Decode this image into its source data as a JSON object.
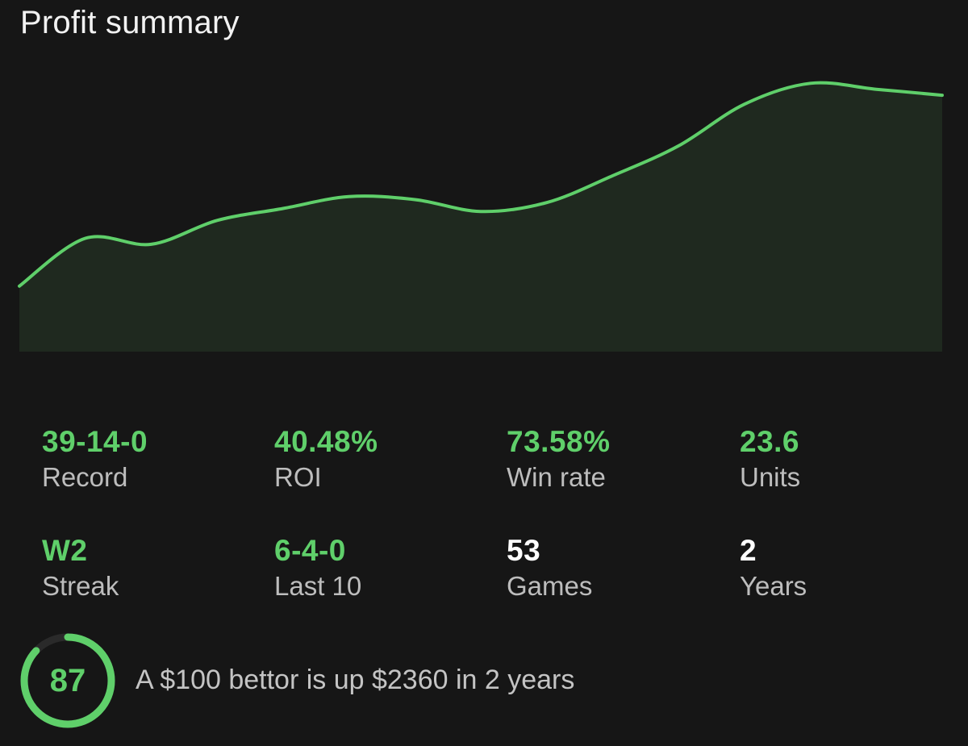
{
  "header": {
    "title": "Profit summary"
  },
  "colors": {
    "background": "#161616",
    "accent_green": "#5fcf6a",
    "area_fill": "#1f291f",
    "label_gray": "#bdbdbd",
    "ring_track": "#2a2a2a"
  },
  "chart_data": {
    "type": "area",
    "title": "",
    "xlabel": "",
    "ylabel": "",
    "grid": false,
    "legend": "none",
    "x": [
      0,
      1,
      2,
      3,
      4,
      5,
      6,
      7,
      8,
      9,
      10,
      11,
      12,
      13,
      14
    ],
    "series": [
      {
        "values": [
          0.7,
          2.3,
          2.1,
          2.9,
          3.3,
          3.7,
          3.6,
          3.2,
          3.5,
          4.4,
          5.4,
          6.8,
          7.5,
          7.3,
          7.1
        ]
      }
    ],
    "ylim": [
      -1.5,
      8.4
    ]
  },
  "stats": [
    {
      "value": "39-14-0",
      "label": "Record",
      "color": "green"
    },
    {
      "value": "40.48%",
      "label": "ROI",
      "color": "green"
    },
    {
      "value": "73.58%",
      "label": "Win rate",
      "color": "green"
    },
    {
      "value": "23.6",
      "label": "Units",
      "color": "green"
    },
    {
      "value": "W2",
      "label": "Streak",
      "color": "green"
    },
    {
      "value": "6-4-0",
      "label": "Last 10",
      "color": "green"
    },
    {
      "value": "53",
      "label": "Games",
      "color": "white"
    },
    {
      "value": "2",
      "label": "Years",
      "color": "white"
    }
  ],
  "score": {
    "value": "87",
    "fraction": 0.87
  },
  "summary": {
    "text": "A $100 bettor is up $2360 in 2 years"
  }
}
